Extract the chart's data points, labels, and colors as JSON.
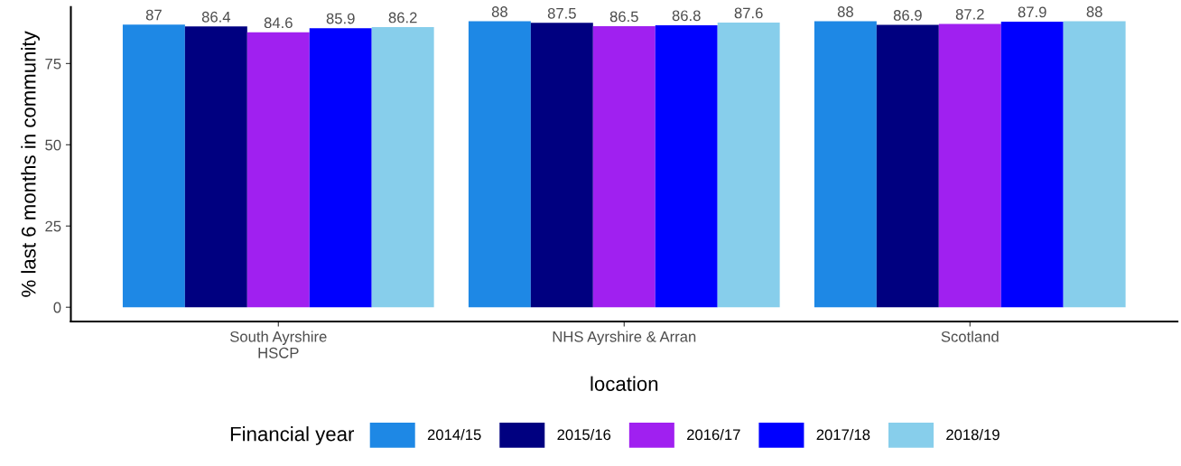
{
  "chart_data": {
    "type": "bar",
    "xlabel": "location",
    "ylabel": "% last 6 months in community",
    "legend_title": "Financial year",
    "categories": [
      "South Ayrshire\nHSCP",
      "NHS Ayrshire & Arran",
      "Scotland"
    ],
    "series": [
      {
        "name": "2014/15",
        "color": "#1e88e5",
        "values": [
          87,
          88,
          88
        ]
      },
      {
        "name": "2015/16",
        "color": "#000080",
        "values": [
          86.4,
          87.5,
          86.9
        ]
      },
      {
        "name": "2016/17",
        "color": "#a020f0",
        "values": [
          84.6,
          86.5,
          87.2
        ]
      },
      {
        "name": "2017/18",
        "color": "#0000ff",
        "values": [
          85.9,
          86.8,
          87.9
        ]
      },
      {
        "name": "2018/19",
        "color": "#87ceeb",
        "values": [
          86.2,
          87.6,
          88
        ]
      }
    ],
    "ylim": [
      -4.4,
      92.4
    ],
    "yticks": [
      0,
      25,
      50,
      75
    ],
    "grid": false,
    "legend": "bottom",
    "data_labels": true
  }
}
